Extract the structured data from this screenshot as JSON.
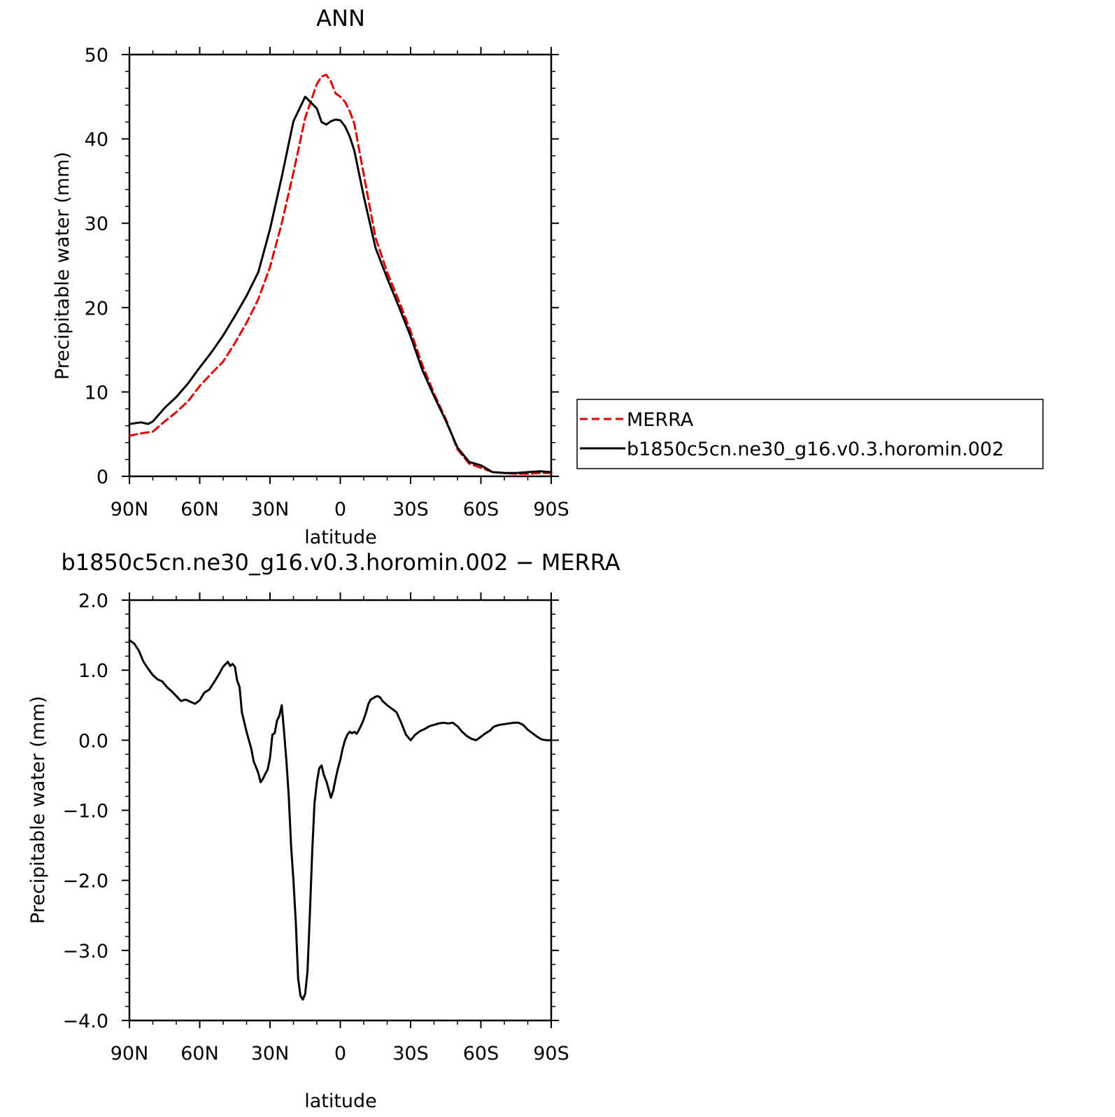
{
  "chart_data": [
    {
      "type": "line",
      "title": "ANN",
      "xlabel": "latitude",
      "ylabel": "Precipitable water (mm)",
      "xlim": [
        90,
        -90
      ],
      "ylim": [
        0,
        50
      ],
      "x_ticks": [
        90,
        60,
        30,
        0,
        -30,
        -60,
        -90
      ],
      "x_tick_labels": [
        "90N",
        "60N",
        "30N",
        "0",
        "30S",
        "60S",
        "90S"
      ],
      "y_ticks": [
        0,
        10,
        20,
        30,
        40,
        50
      ],
      "y_tick_labels": [
        "0",
        "10",
        "20",
        "30",
        "40",
        "50"
      ],
      "legend_placement": "right",
      "series": [
        {
          "name": "MERRA",
          "color": "#e00000",
          "style": "dashed",
          "x": [
            90,
            85,
            80,
            75,
            70,
            65,
            60,
            55,
            50,
            45,
            40,
            35,
            30,
            25,
            20,
            15,
            10,
            8,
            6,
            4,
            2,
            0,
            -2,
            -4,
            -6,
            -10,
            -15,
            -20,
            -25,
            -30,
            -35,
            -40,
            -45,
            -50,
            -55,
            -60,
            -65,
            -70,
            -75,
            -80,
            -85,
            -90
          ],
          "y": [
            4.8,
            5.1,
            5.3,
            6.5,
            7.6,
            8.9,
            10.7,
            12.2,
            13.6,
            15.8,
            18.2,
            21.0,
            24.8,
            30.0,
            36.0,
            42.5,
            46.5,
            47.4,
            47.6,
            46.8,
            45.4,
            45.0,
            44.4,
            43.3,
            41.8,
            35.8,
            28.3,
            24.2,
            20.8,
            17.2,
            13.2,
            9.8,
            6.8,
            3.2,
            1.5,
            1.0,
            0.5,
            0.4,
            0.3,
            0.3,
            0.4,
            0.4
          ]
        },
        {
          "name": "b1850c5cn.ne30_g16.v0.3.horomin.002",
          "color": "#000000",
          "style": "solid",
          "x": [
            90,
            85,
            82,
            80,
            75,
            70,
            65,
            60,
            55,
            50,
            45,
            40,
            35,
            30,
            25,
            20,
            15,
            10,
            8,
            6,
            4,
            2,
            0,
            -2,
            -4,
            -6,
            -10,
            -15,
            -20,
            -25,
            -30,
            -35,
            -40,
            -45,
            -50,
            -55,
            -60,
            -65,
            -70,
            -75,
            -80,
            -85,
            -90
          ],
          "y": [
            6.2,
            6.4,
            6.2,
            6.5,
            8.1,
            9.4,
            11.0,
            12.9,
            14.7,
            16.7,
            19.0,
            21.4,
            24.2,
            29.3,
            35.5,
            42.1,
            45.0,
            43.6,
            42.0,
            41.7,
            42.1,
            42.3,
            42.2,
            41.5,
            40.3,
            38.6,
            33.2,
            27.1,
            23.5,
            20.1,
            16.6,
            12.6,
            9.5,
            6.6,
            3.4,
            1.7,
            1.3,
            0.5,
            0.4,
            0.4,
            0.5,
            0.6,
            0.5
          ]
        }
      ]
    },
    {
      "type": "line",
      "title": "b1850c5cn.ne30_g16.v0.3.horomin.002 − MERRA",
      "xlabel": "latitude",
      "ylabel": "Precipitable water (mm)",
      "xlim": [
        90,
        -90
      ],
      "ylim": [
        -4.0,
        2.0
      ],
      "x_ticks": [
        90,
        60,
        30,
        0,
        -30,
        -60,
        -90
      ],
      "x_tick_labels": [
        "90N",
        "60N",
        "30N",
        "0",
        "30S",
        "60S",
        "90S"
      ],
      "y_ticks": [
        2.0,
        1.0,
        0.0,
        -1.0,
        -2.0,
        -3.0,
        -4.0
      ],
      "y_tick_labels": [
        "2.0",
        "1.0",
        "0.0",
        "−1.0",
        "−2.0",
        "−3.0",
        "−4.0"
      ],
      "series": [
        {
          "color": "#000000",
          "style": "solid",
          "x": [
            90,
            88,
            86,
            84,
            82,
            80,
            78,
            76,
            74,
            72,
            70,
            68,
            66,
            64,
            62,
            60,
            58,
            56,
            54,
            52,
            50,
            48,
            47,
            46,
            45,
            44,
            43,
            42,
            40,
            38,
            37,
            36,
            35,
            34,
            33,
            32,
            31,
            30,
            29,
            28,
            27,
            26,
            25,
            24,
            23,
            22,
            21,
            20,
            19,
            18,
            17,
            16,
            15,
            14,
            13,
            12,
            11,
            10,
            9,
            8,
            7,
            6,
            5,
            4,
            3,
            2,
            1,
            0,
            -1,
            -2,
            -3,
            -4,
            -5,
            -6,
            -7,
            -8,
            -9,
            -10,
            -11,
            -12,
            -13,
            -14,
            -15,
            -16,
            -17,
            -18,
            -20,
            -22,
            -24,
            -26,
            -28,
            -30,
            -32,
            -34,
            -36,
            -38,
            -40,
            -42,
            -44,
            -46,
            -48,
            -50,
            -52,
            -54,
            -56,
            -58,
            -60,
            -62,
            -64,
            -65,
            -66,
            -68,
            -70,
            -72,
            -74,
            -76,
            -78,
            -80,
            -82,
            -84,
            -86,
            -88,
            -90
          ],
          "y": [
            1.43,
            1.38,
            1.28,
            1.12,
            1.02,
            0.93,
            0.87,
            0.84,
            0.76,
            0.7,
            0.63,
            0.56,
            0.58,
            0.55,
            0.52,
            0.57,
            0.68,
            0.72,
            0.82,
            0.93,
            1.05,
            1.12,
            1.06,
            1.09,
            1.05,
            0.85,
            0.76,
            0.4,
            0.12,
            -0.12,
            -0.3,
            -0.38,
            -0.47,
            -0.6,
            -0.55,
            -0.48,
            -0.42,
            -0.25,
            0.08,
            0.1,
            0.28,
            0.35,
            0.5,
            0.12,
            -0.3,
            -0.8,
            -1.5,
            -2.0,
            -2.6,
            -3.4,
            -3.65,
            -3.7,
            -3.62,
            -3.3,
            -2.5,
            -1.6,
            -0.9,
            -0.6,
            -0.4,
            -0.36,
            -0.5,
            -0.58,
            -0.7,
            -0.82,
            -0.72,
            -0.55,
            -0.4,
            -0.28,
            -0.12,
            0.0,
            0.08,
            0.12,
            0.1,
            0.12,
            0.09,
            0.15,
            0.22,
            0.3,
            0.4,
            0.52,
            0.58,
            0.6,
            0.62,
            0.63,
            0.61,
            0.56,
            0.5,
            0.45,
            0.4,
            0.25,
            0.08,
            0.0,
            0.08,
            0.13,
            0.16,
            0.2,
            0.22,
            0.24,
            0.25,
            0.24,
            0.25,
            0.2,
            0.12,
            0.06,
            0.02,
            0.0,
            0.05,
            0.1,
            0.14,
            0.18,
            0.2,
            0.22,
            0.23,
            0.24,
            0.25,
            0.25,
            0.22,
            0.15,
            0.1,
            0.05,
            0.01,
            0.0,
            0.0
          ]
        }
      ]
    }
  ]
}
